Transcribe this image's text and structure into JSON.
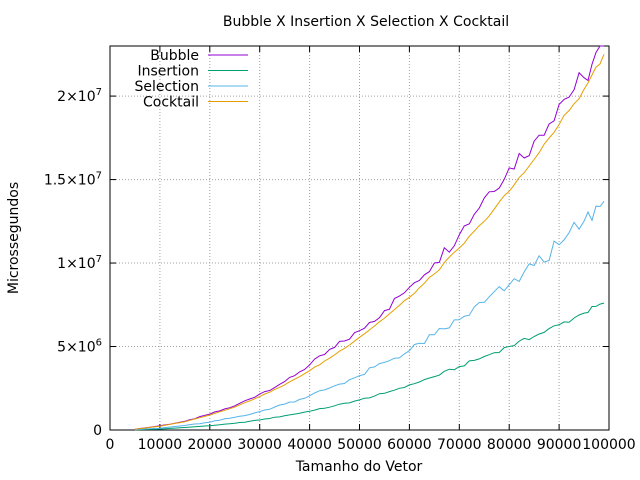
{
  "chart_data": {
    "type": "line",
    "title": "Bubble X Insertion X Selection X Cocktail",
    "xlabel": "Tamanho do Vetor",
    "ylabel": "Microssegundos",
    "xlim": [
      0,
      100000
    ],
    "ylim": [
      0,
      23000000
    ],
    "x_ticks": [
      0,
      10000,
      20000,
      30000,
      40000,
      50000,
      60000,
      70000,
      80000,
      90000,
      100000
    ],
    "x_tick_labels": [
      "0",
      "10000",
      "20000",
      "30000",
      "40000",
      "50000",
      "60000",
      "70000",
      "80000",
      "90000",
      "100000"
    ],
    "y_ticks": [
      0,
      5000000,
      10000000,
      15000000,
      20000000
    ],
    "y_tick_labels": [
      {
        "base": "0",
        "exp": ""
      },
      {
        "base": "5×10",
        "exp": "6"
      },
      {
        "base": "1×10",
        "exp": "7"
      },
      {
        "base": "1.5×10",
        "exp": "7"
      },
      {
        "base": "2×10",
        "exp": "7"
      }
    ],
    "grid": true,
    "legend_position": "top-left",
    "x": [
      5000,
      10000,
      15000,
      20000,
      25000,
      30000,
      35000,
      40000,
      45000,
      50000,
      55000,
      60000,
      65000,
      70000,
      75000,
      80000,
      85000,
      90000,
      95000,
      99000
    ],
    "series": [
      {
        "name": "Bubble",
        "color": "#9400d3",
        "values": [
          50000,
          250000,
          520000,
          950000,
          1450000,
          2150000,
          2900000,
          3900000,
          4950000,
          5950000,
          7150000,
          8550000,
          10000000,
          11700000,
          13900000,
          15700000,
          17300000,
          19500000,
          21100000,
          23000000
        ]
      },
      {
        "name": "Insertion",
        "color": "#009e73",
        "values": [
          15000,
          60000,
          150000,
          260000,
          400000,
          600000,
          850000,
          1120000,
          1450000,
          1800000,
          2200000,
          2700000,
          3200000,
          3800000,
          4400000,
          5000000,
          5600000,
          6300000,
          7000000,
          7600000
        ]
      },
      {
        "name": "Selection",
        "color": "#56b4e9",
        "values": [
          25000,
          110000,
          270000,
          470000,
          760000,
          1100000,
          1550000,
          2050000,
          2650000,
          3250000,
          4050000,
          4750000,
          5700000,
          6600000,
          7650000,
          8700000,
          9850000,
          11100000,
          12500000,
          13700000
        ]
      },
      {
        "name": "Cocktail",
        "color": "#e69f00",
        "values": [
          45000,
          230000,
          500000,
          900000,
          1380000,
          2000000,
          2700000,
          3550000,
          4500000,
          5550000,
          6700000,
          7950000,
          9350000,
          10900000,
          12500000,
          14300000,
          16200000,
          18300000,
          20400000,
          22500000
        ]
      }
    ]
  }
}
